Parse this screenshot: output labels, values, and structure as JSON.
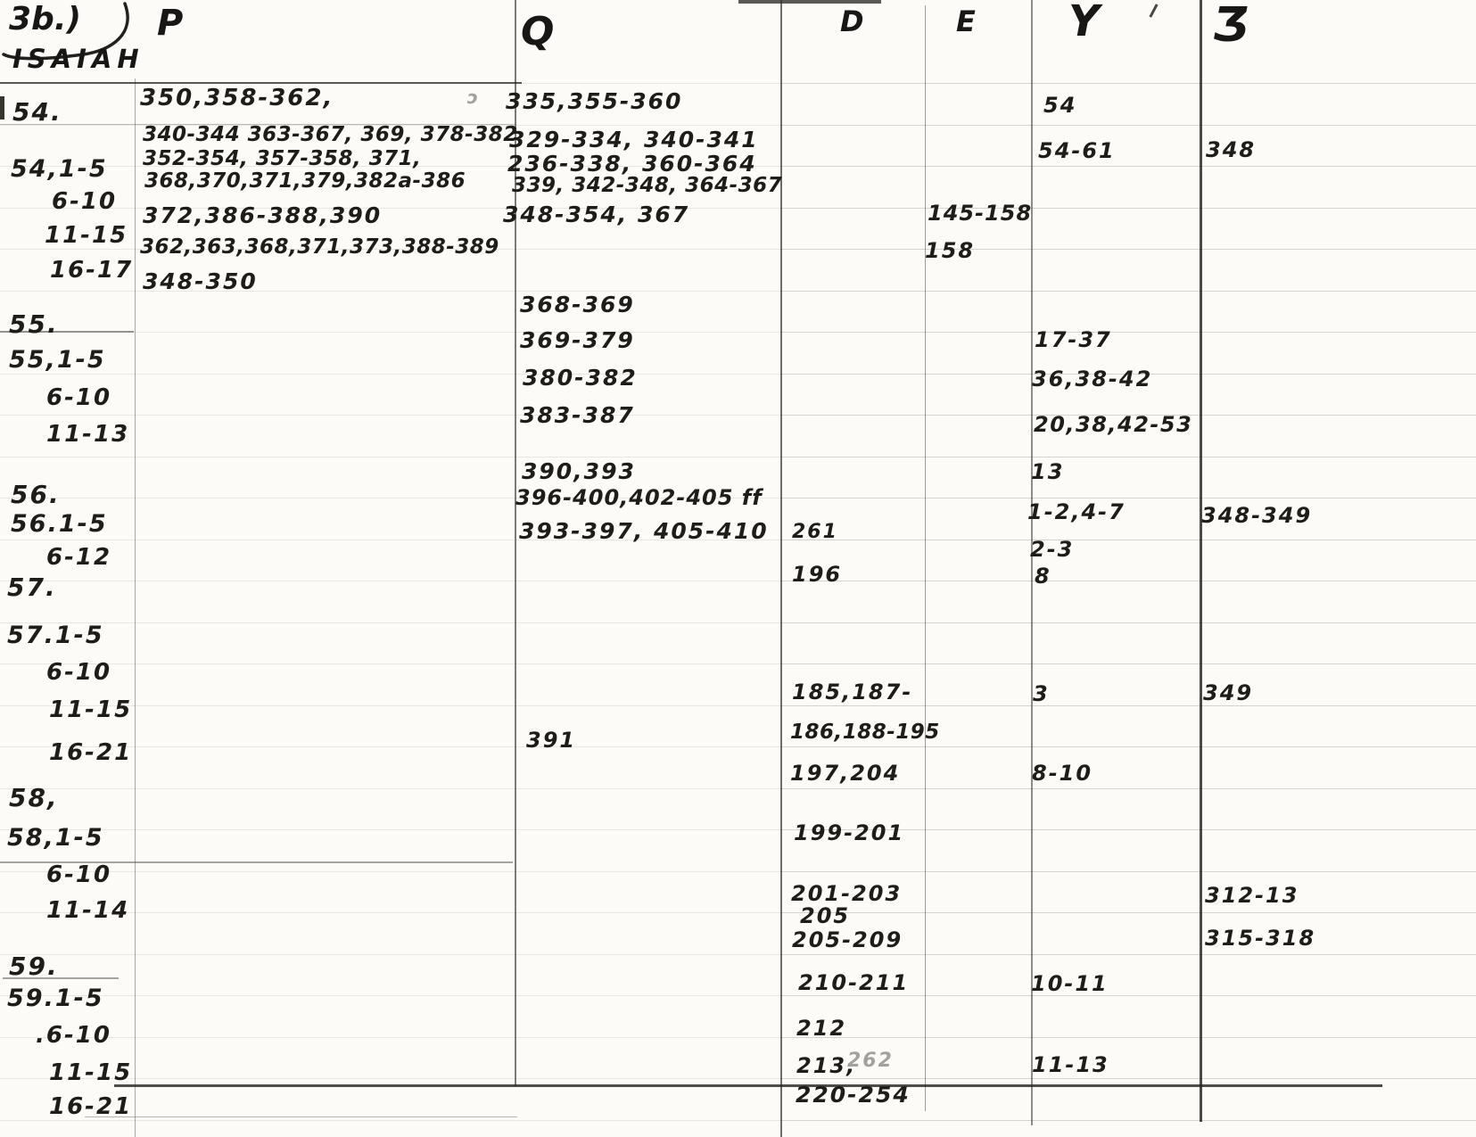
{
  "meta": {
    "description": "Scanned handwritten index page for the book of Isaiah, chapters 54-59, with reference columns",
    "ink_color": "#1f1d1a",
    "pencil_color": "#a3a19b",
    "paper_color": "#fcfbf8"
  },
  "header": {
    "page_label": "3b.)",
    "book": "ISAIAH",
    "columns": [
      {
        "key": "P",
        "glyph": "P"
      },
      {
        "key": "Q",
        "glyph": "Q"
      },
      {
        "key": "D",
        "glyph": "D"
      },
      {
        "key": "E",
        "glyph": "E"
      },
      {
        "key": "Y",
        "glyph": "Y"
      },
      {
        "key": "Z",
        "glyph": "Ʒ"
      }
    ]
  },
  "entries": [
    {
      "row": "54",
      "col": "label",
      "text": "54."
    },
    {
      "row": "54.1-5",
      "col": "label",
      "text": "54,1-5"
    },
    {
      "row": "54.6-10",
      "col": "label",
      "text": "6-10"
    },
    {
      "row": "54.11-15",
      "col": "label",
      "text": "11-15"
    },
    {
      "row": "54.16-17",
      "col": "label",
      "text": "16-17"
    },
    {
      "row": "55",
      "col": "label",
      "text": "55."
    },
    {
      "row": "55.1-5",
      "col": "label",
      "text": "55,1-5"
    },
    {
      "row": "55.6-10",
      "col": "label",
      "text": "6-10"
    },
    {
      "row": "55.11-13",
      "col": "label",
      "text": "11-13"
    },
    {
      "row": "56",
      "col": "label",
      "text": "56."
    },
    {
      "row": "56.1-5",
      "col": "label",
      "text": "56.1-5"
    },
    {
      "row": "56.6-12",
      "col": "label",
      "text": "6-12"
    },
    {
      "row": "57",
      "col": "label",
      "text": "57."
    },
    {
      "row": "57.1-5",
      "col": "label",
      "text": "57.1-5"
    },
    {
      "row": "57.6-10",
      "col": "label",
      "text": "6-10"
    },
    {
      "row": "57.11-15",
      "col": "label",
      "text": "11-15"
    },
    {
      "row": "57.16-21",
      "col": "label",
      "text": "16-21"
    },
    {
      "row": "58",
      "col": "label",
      "text": "58,"
    },
    {
      "row": "58.1-5",
      "col": "label",
      "text": "58,1-5"
    },
    {
      "row": "58.6-10",
      "col": "label",
      "text": "6-10"
    },
    {
      "row": "58.11-14",
      "col": "label",
      "text": "11-14"
    },
    {
      "row": "59",
      "col": "label",
      "text": "59."
    },
    {
      "row": "59.1-5",
      "col": "label",
      "text": "59.1-5"
    },
    {
      "row": "59.6-10",
      "col": "label",
      "text": ".6-10"
    },
    {
      "row": "59.11-15",
      "col": "label",
      "text": "11-15"
    },
    {
      "row": "59.16-21",
      "col": "label",
      "text": "16-21"
    },
    {
      "row": "54",
      "col": "P",
      "text": "350,358-362,"
    },
    {
      "row": "54",
      "col": "P",
      "text": "ɔ"
    },
    {
      "row": "54.1-5",
      "col": "P",
      "text": "340-344 363-367, 369, 378-382"
    },
    {
      "row": "54.1-5",
      "col": "P",
      "text": "352-354, 357-358, 371,"
    },
    {
      "row": "54.6-10",
      "col": "P",
      "text": "368,370,371,379,382a-386"
    },
    {
      "row": "54.11-15",
      "col": "P",
      "text": "372,386-388,390"
    },
    {
      "row": "54.16-17",
      "col": "P",
      "text": "362,363,368,371,373,388-389"
    },
    {
      "row": "55",
      "col": "P",
      "text": "348-350"
    },
    {
      "row": "54",
      "col": "Q",
      "text": "335,355-360"
    },
    {
      "row": "54.1-5",
      "col": "Q",
      "text": "329-334, 340-341"
    },
    {
      "row": "54.1-5",
      "col": "Q",
      "text": "236-338, 360-364"
    },
    {
      "row": "54.1-5",
      "col": "Q",
      "text": "339, 342-348, 364-367"
    },
    {
      "row": "54.11-15",
      "col": "Q",
      "text": "348-354, 367"
    },
    {
      "row": "55",
      "col": "Q",
      "text": "368-369"
    },
    {
      "row": "55.1-5",
      "col": "Q",
      "text": "369-379"
    },
    {
      "row": "55.6-10",
      "col": "Q",
      "text": "380-382"
    },
    {
      "row": "55.11-13",
      "col": "Q",
      "text": "383-387"
    },
    {
      "row": "56",
      "col": "Q",
      "text": "390,393"
    },
    {
      "row": "56.1-5",
      "col": "Q",
      "text": "396-400,402-405 ff"
    },
    {
      "row": "56.6-12",
      "col": "Q",
      "text": "393-397, 405-410"
    },
    {
      "row": "57.16-21",
      "col": "Q",
      "text": "391"
    },
    {
      "row": "56.6-12",
      "col": "D",
      "text": "261"
    },
    {
      "row": "57",
      "col": "D",
      "text": "196"
    },
    {
      "row": "57.11-15",
      "col": "D",
      "text": "185,187-"
    },
    {
      "row": "57.16-21",
      "col": "D",
      "text": "186,188-195"
    },
    {
      "row": "58",
      "col": "D",
      "text": "197,204"
    },
    {
      "row": "58.1-5",
      "col": "D",
      "text": "199-201"
    },
    {
      "row": "58.6-10",
      "col": "D",
      "text": "201-203"
    },
    {
      "row": "58.6-10",
      "col": "D",
      "text": "205"
    },
    {
      "row": "58.11-14",
      "col": "D",
      "text": "205-209"
    },
    {
      "row": "59.1-5",
      "col": "D",
      "text": "210-211"
    },
    {
      "row": "59.6-10",
      "col": "D",
      "text": "212"
    },
    {
      "row": "59.11-15",
      "col": "D",
      "text": "213,"
    },
    {
      "row": "59.11-15",
      "col": "D",
      "text": "262"
    },
    {
      "row": "59.16-21",
      "col": "D",
      "text": "220-254"
    },
    {
      "row": "54.11-15",
      "col": "E",
      "text": "145-158"
    },
    {
      "row": "54.16-17",
      "col": "E",
      "text": "158"
    },
    {
      "row": "54",
      "col": "Y",
      "text": "54"
    },
    {
      "row": "54.1-5",
      "col": "Y",
      "text": "54-61"
    },
    {
      "row": "55.1-5",
      "col": "Y",
      "text": "17-37"
    },
    {
      "row": "55.6-10",
      "col": "Y",
      "text": "36,38-42"
    },
    {
      "row": "55.11-13",
      "col": "Y",
      "text": "20,38,42-53"
    },
    {
      "row": "56",
      "col": "Y",
      "text": "13"
    },
    {
      "row": "56.1-5",
      "col": "Y",
      "text": "1-2,4-7"
    },
    {
      "row": "56.6-12",
      "col": "Y",
      "text": "2-3"
    },
    {
      "row": "57",
      "col": "Y",
      "text": "8"
    },
    {
      "row": "57.11-15",
      "col": "Y",
      "text": "3"
    },
    {
      "row": "58",
      "col": "Y",
      "text": "8-10"
    },
    {
      "row": "59.1-5",
      "col": "Y",
      "text": "10-11"
    },
    {
      "row": "59.11-15",
      "col": "Y",
      "text": "11-13"
    },
    {
      "row": "54.1-5",
      "col": "Z",
      "text": "348"
    },
    {
      "row": "56.1-5",
      "col": "Z",
      "text": "348-349"
    },
    {
      "row": "57.11-15",
      "col": "Z",
      "text": "349"
    },
    {
      "row": "58.6-10",
      "col": "Z",
      "text": "312-13"
    },
    {
      "row": "58.11-14",
      "col": "Z",
      "text": "315-318"
    }
  ]
}
